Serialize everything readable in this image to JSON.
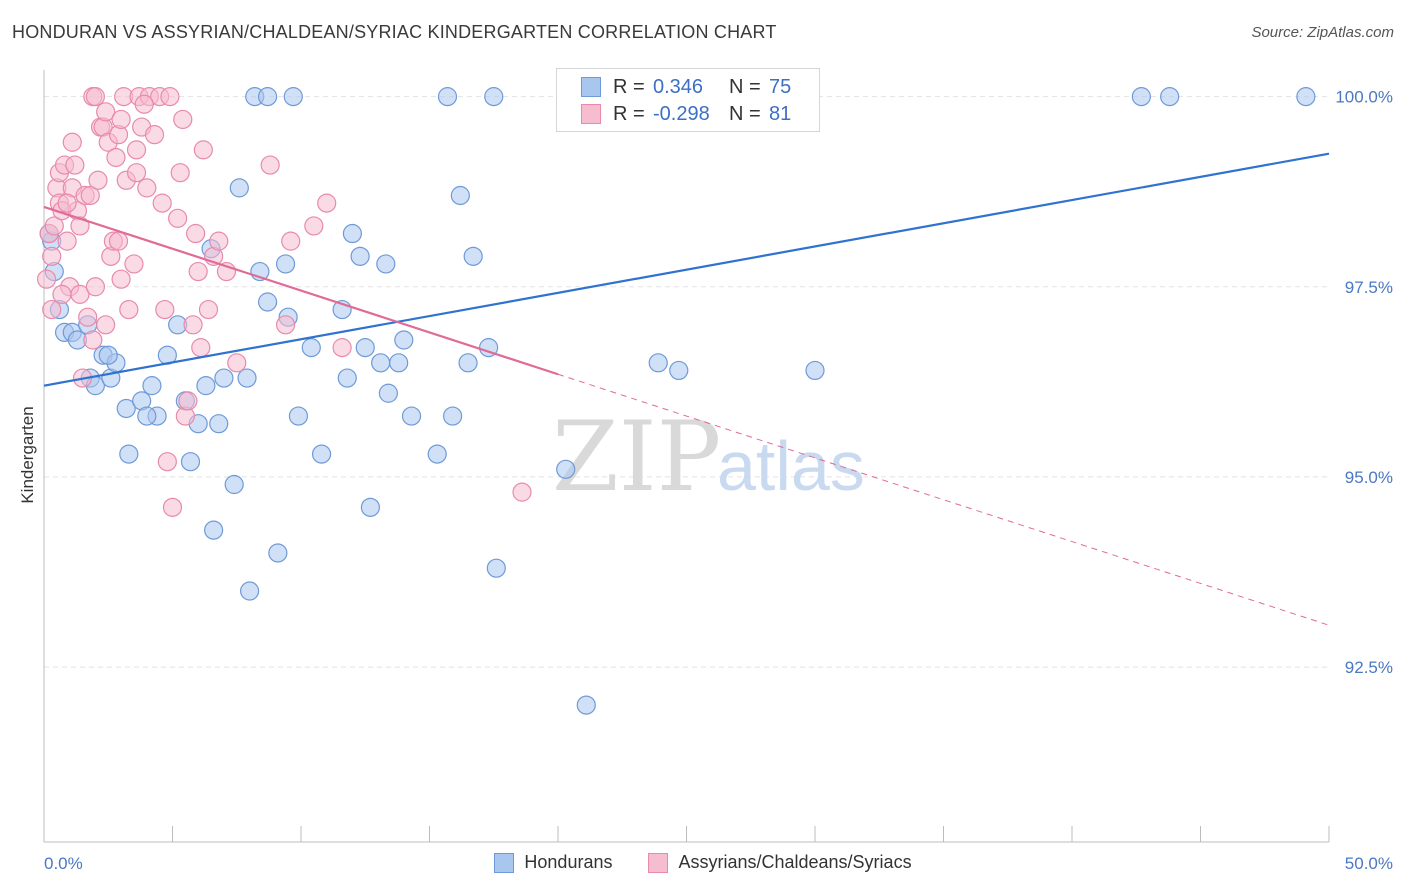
{
  "title": "HONDURAN VS ASSYRIAN/CHALDEAN/SYRIAC KINDERGARTEN CORRELATION CHART",
  "source": "Source: ZipAtlas.com",
  "watermark": {
    "zip": "ZIP",
    "atlas": "atlas"
  },
  "legend": {
    "rows": [
      {
        "r_label": "R =",
        "r_value": "0.346",
        "n_label": "N =",
        "n_value": "75"
      },
      {
        "r_label": "R =",
        "r_value": "-0.298",
        "n_label": "N =",
        "n_value": "81"
      }
    ]
  },
  "colors": {
    "blue": "#a9c6ee",
    "blue_stroke": "#6f9ad8",
    "blue_line": "#2f72d0",
    "pink": "#f6bcd0",
    "pink_stroke": "#e88aac",
    "pink_line": "#e06b96",
    "grid": "#e3e3e3",
    "tick_text": "#4a78c2"
  },
  "chart_data": {
    "type": "scatter",
    "title": "HONDURAN VS ASSYRIAN/CHALDEAN/SYRIAC KINDERGARTEN CORRELATION CHART",
    "xlabel": "",
    "ylabel": "Kindergarten",
    "xlim": [
      0,
      50
    ],
    "ylim": [
      90.2,
      100.35
    ],
    "x_tick_labels": [
      "0.0%",
      "50.0%"
    ],
    "y_ticks": [
      92.5,
      95.0,
      97.5,
      100.0
    ],
    "y_tick_labels": [
      "92.5%",
      "95.0%",
      "97.5%",
      "100.0%"
    ],
    "grid": true,
    "legend_position": "top-center",
    "series": [
      {
        "name": "Hondurans",
        "r": 0.346,
        "n": 75,
        "trend": {
          "x": [
            0,
            50
          ],
          "y": [
            96.2,
            99.25
          ],
          "dashed_from": null
        },
        "points": [
          [
            0.3,
            98.1
          ],
          [
            0.4,
            97.7
          ],
          [
            0.6,
            97.2
          ],
          [
            0.8,
            96.9
          ],
          [
            1.1,
            96.9
          ],
          [
            1.3,
            96.8
          ],
          [
            1.7,
            97.0
          ],
          [
            1.8,
            96.3
          ],
          [
            2.0,
            96.2
          ],
          [
            2.3,
            96.6
          ],
          [
            2.6,
            96.3
          ],
          [
            2.8,
            96.5
          ],
          [
            3.2,
            95.9
          ],
          [
            3.3,
            95.3
          ],
          [
            3.8,
            96.0
          ],
          [
            4.2,
            96.2
          ],
          [
            4.4,
            95.8
          ],
          [
            4.8,
            96.6
          ],
          [
            5.2,
            97.0
          ],
          [
            5.5,
            96.0
          ],
          [
            5.7,
            95.2
          ],
          [
            6.0,
            95.7
          ],
          [
            6.3,
            96.2
          ],
          [
            6.5,
            98.0
          ],
          [
            6.6,
            94.3
          ],
          [
            6.8,
            95.7
          ],
          [
            7.0,
            96.3
          ],
          [
            7.4,
            94.9
          ],
          [
            7.6,
            98.8
          ],
          [
            7.9,
            96.3
          ],
          [
            8.0,
            93.5
          ],
          [
            8.4,
            97.7
          ],
          [
            8.7,
            97.3
          ],
          [
            9.1,
            94.0
          ],
          [
            9.4,
            97.8
          ],
          [
            9.5,
            97.1
          ],
          [
            9.9,
            95.8
          ],
          [
            10.4,
            96.7
          ],
          [
            10.8,
            95.3
          ],
          [
            11.6,
            97.2
          ],
          [
            11.8,
            96.3
          ],
          [
            12.0,
            98.2
          ],
          [
            12.3,
            97.9
          ],
          [
            12.7,
            94.6
          ],
          [
            13.1,
            96.5
          ],
          [
            13.3,
            97.8
          ],
          [
            13.4,
            96.1
          ],
          [
            13.8,
            96.5
          ],
          [
            14.0,
            96.8
          ],
          [
            14.3,
            95.8
          ],
          [
            15.3,
            95.3
          ],
          [
            15.9,
            95.8
          ],
          [
            16.2,
            98.7
          ],
          [
            16.5,
            96.5
          ],
          [
            16.7,
            97.9
          ],
          [
            17.3,
            96.7
          ],
          [
            17.6,
            93.8
          ],
          [
            20.3,
            95.1
          ],
          [
            21.1,
            92.0
          ],
          [
            23.9,
            96.5
          ],
          [
            24.7,
            96.4
          ],
          [
            30.0,
            96.4
          ],
          [
            8.2,
            100.0
          ],
          [
            8.7,
            100.0
          ],
          [
            9.7,
            100.0
          ],
          [
            15.7,
            100.0
          ],
          [
            17.5,
            100.0
          ],
          [
            29.5,
            100.0
          ],
          [
            42.7,
            100.0
          ],
          [
            43.8,
            100.0
          ],
          [
            49.1,
            100.0
          ],
          [
            0.2,
            98.2
          ],
          [
            2.5,
            96.6
          ],
          [
            4.0,
            95.8
          ],
          [
            12.5,
            96.7
          ]
        ]
      },
      {
        "name": "Assyrians/Chaldeans/Syriacs",
        "r": -0.298,
        "n": 81,
        "trend": {
          "x": [
            0,
            50
          ],
          "y": [
            98.55,
            93.05
          ],
          "dashed_from": 20
        },
        "points": [
          [
            0.1,
            97.6
          ],
          [
            0.2,
            98.2
          ],
          [
            0.3,
            97.2
          ],
          [
            0.4,
            98.3
          ],
          [
            0.5,
            98.8
          ],
          [
            0.6,
            99.0
          ],
          [
            0.6,
            98.6
          ],
          [
            0.7,
            98.5
          ],
          [
            0.8,
            99.1
          ],
          [
            0.9,
            98.1
          ],
          [
            1.0,
            97.5
          ],
          [
            1.1,
            98.8
          ],
          [
            1.2,
            99.1
          ],
          [
            1.3,
            98.5
          ],
          [
            1.4,
            97.4
          ],
          [
            1.5,
            96.3
          ],
          [
            1.6,
            98.7
          ],
          [
            1.7,
            97.1
          ],
          [
            1.8,
            98.7
          ],
          [
            1.9,
            96.8
          ],
          [
            2.0,
            97.5
          ],
          [
            2.1,
            98.9
          ],
          [
            2.2,
            99.6
          ],
          [
            2.3,
            99.6
          ],
          [
            2.4,
            99.8
          ],
          [
            2.5,
            99.4
          ],
          [
            2.6,
            97.9
          ],
          [
            2.7,
            98.1
          ],
          [
            2.8,
            99.2
          ],
          [
            2.9,
            99.5
          ],
          [
            3.0,
            97.6
          ],
          [
            3.1,
            100.0
          ],
          [
            3.2,
            98.9
          ],
          [
            3.3,
            97.2
          ],
          [
            3.5,
            97.8
          ],
          [
            3.6,
            99.3
          ],
          [
            3.7,
            100.0
          ],
          [
            3.8,
            99.6
          ],
          [
            4.0,
            98.8
          ],
          [
            4.1,
            100.0
          ],
          [
            4.3,
            99.5
          ],
          [
            4.5,
            100.0
          ],
          [
            4.6,
            98.6
          ],
          [
            4.7,
            97.2
          ],
          [
            4.8,
            95.2
          ],
          [
            5.0,
            94.6
          ],
          [
            5.2,
            98.4
          ],
          [
            5.4,
            99.7
          ],
          [
            5.5,
            95.8
          ],
          [
            5.6,
            96.0
          ],
          [
            5.8,
            97.0
          ],
          [
            5.9,
            98.2
          ],
          [
            6.1,
            96.7
          ],
          [
            6.2,
            99.3
          ],
          [
            6.4,
            97.2
          ],
          [
            6.6,
            97.9
          ],
          [
            6.8,
            98.1
          ],
          [
            7.1,
            97.7
          ],
          [
            8.8,
            99.1
          ],
          [
            9.4,
            97.0
          ],
          [
            9.6,
            98.1
          ],
          [
            10.5,
            98.3
          ],
          [
            11.0,
            98.6
          ],
          [
            11.6,
            96.7
          ],
          [
            18.6,
            94.8
          ],
          [
            0.3,
            97.9
          ],
          [
            1.9,
            100.0
          ],
          [
            3.0,
            99.7
          ],
          [
            4.9,
            100.0
          ],
          [
            0.7,
            97.4
          ],
          [
            1.4,
            98.3
          ],
          [
            2.0,
            100.0
          ],
          [
            2.9,
            98.1
          ],
          [
            3.6,
            99.0
          ],
          [
            1.1,
            99.4
          ],
          [
            0.9,
            98.6
          ],
          [
            2.4,
            97.0
          ],
          [
            3.9,
            99.9
          ],
          [
            5.3,
            99.0
          ],
          [
            6.0,
            97.7
          ],
          [
            7.5,
            96.5
          ]
        ]
      }
    ]
  }
}
